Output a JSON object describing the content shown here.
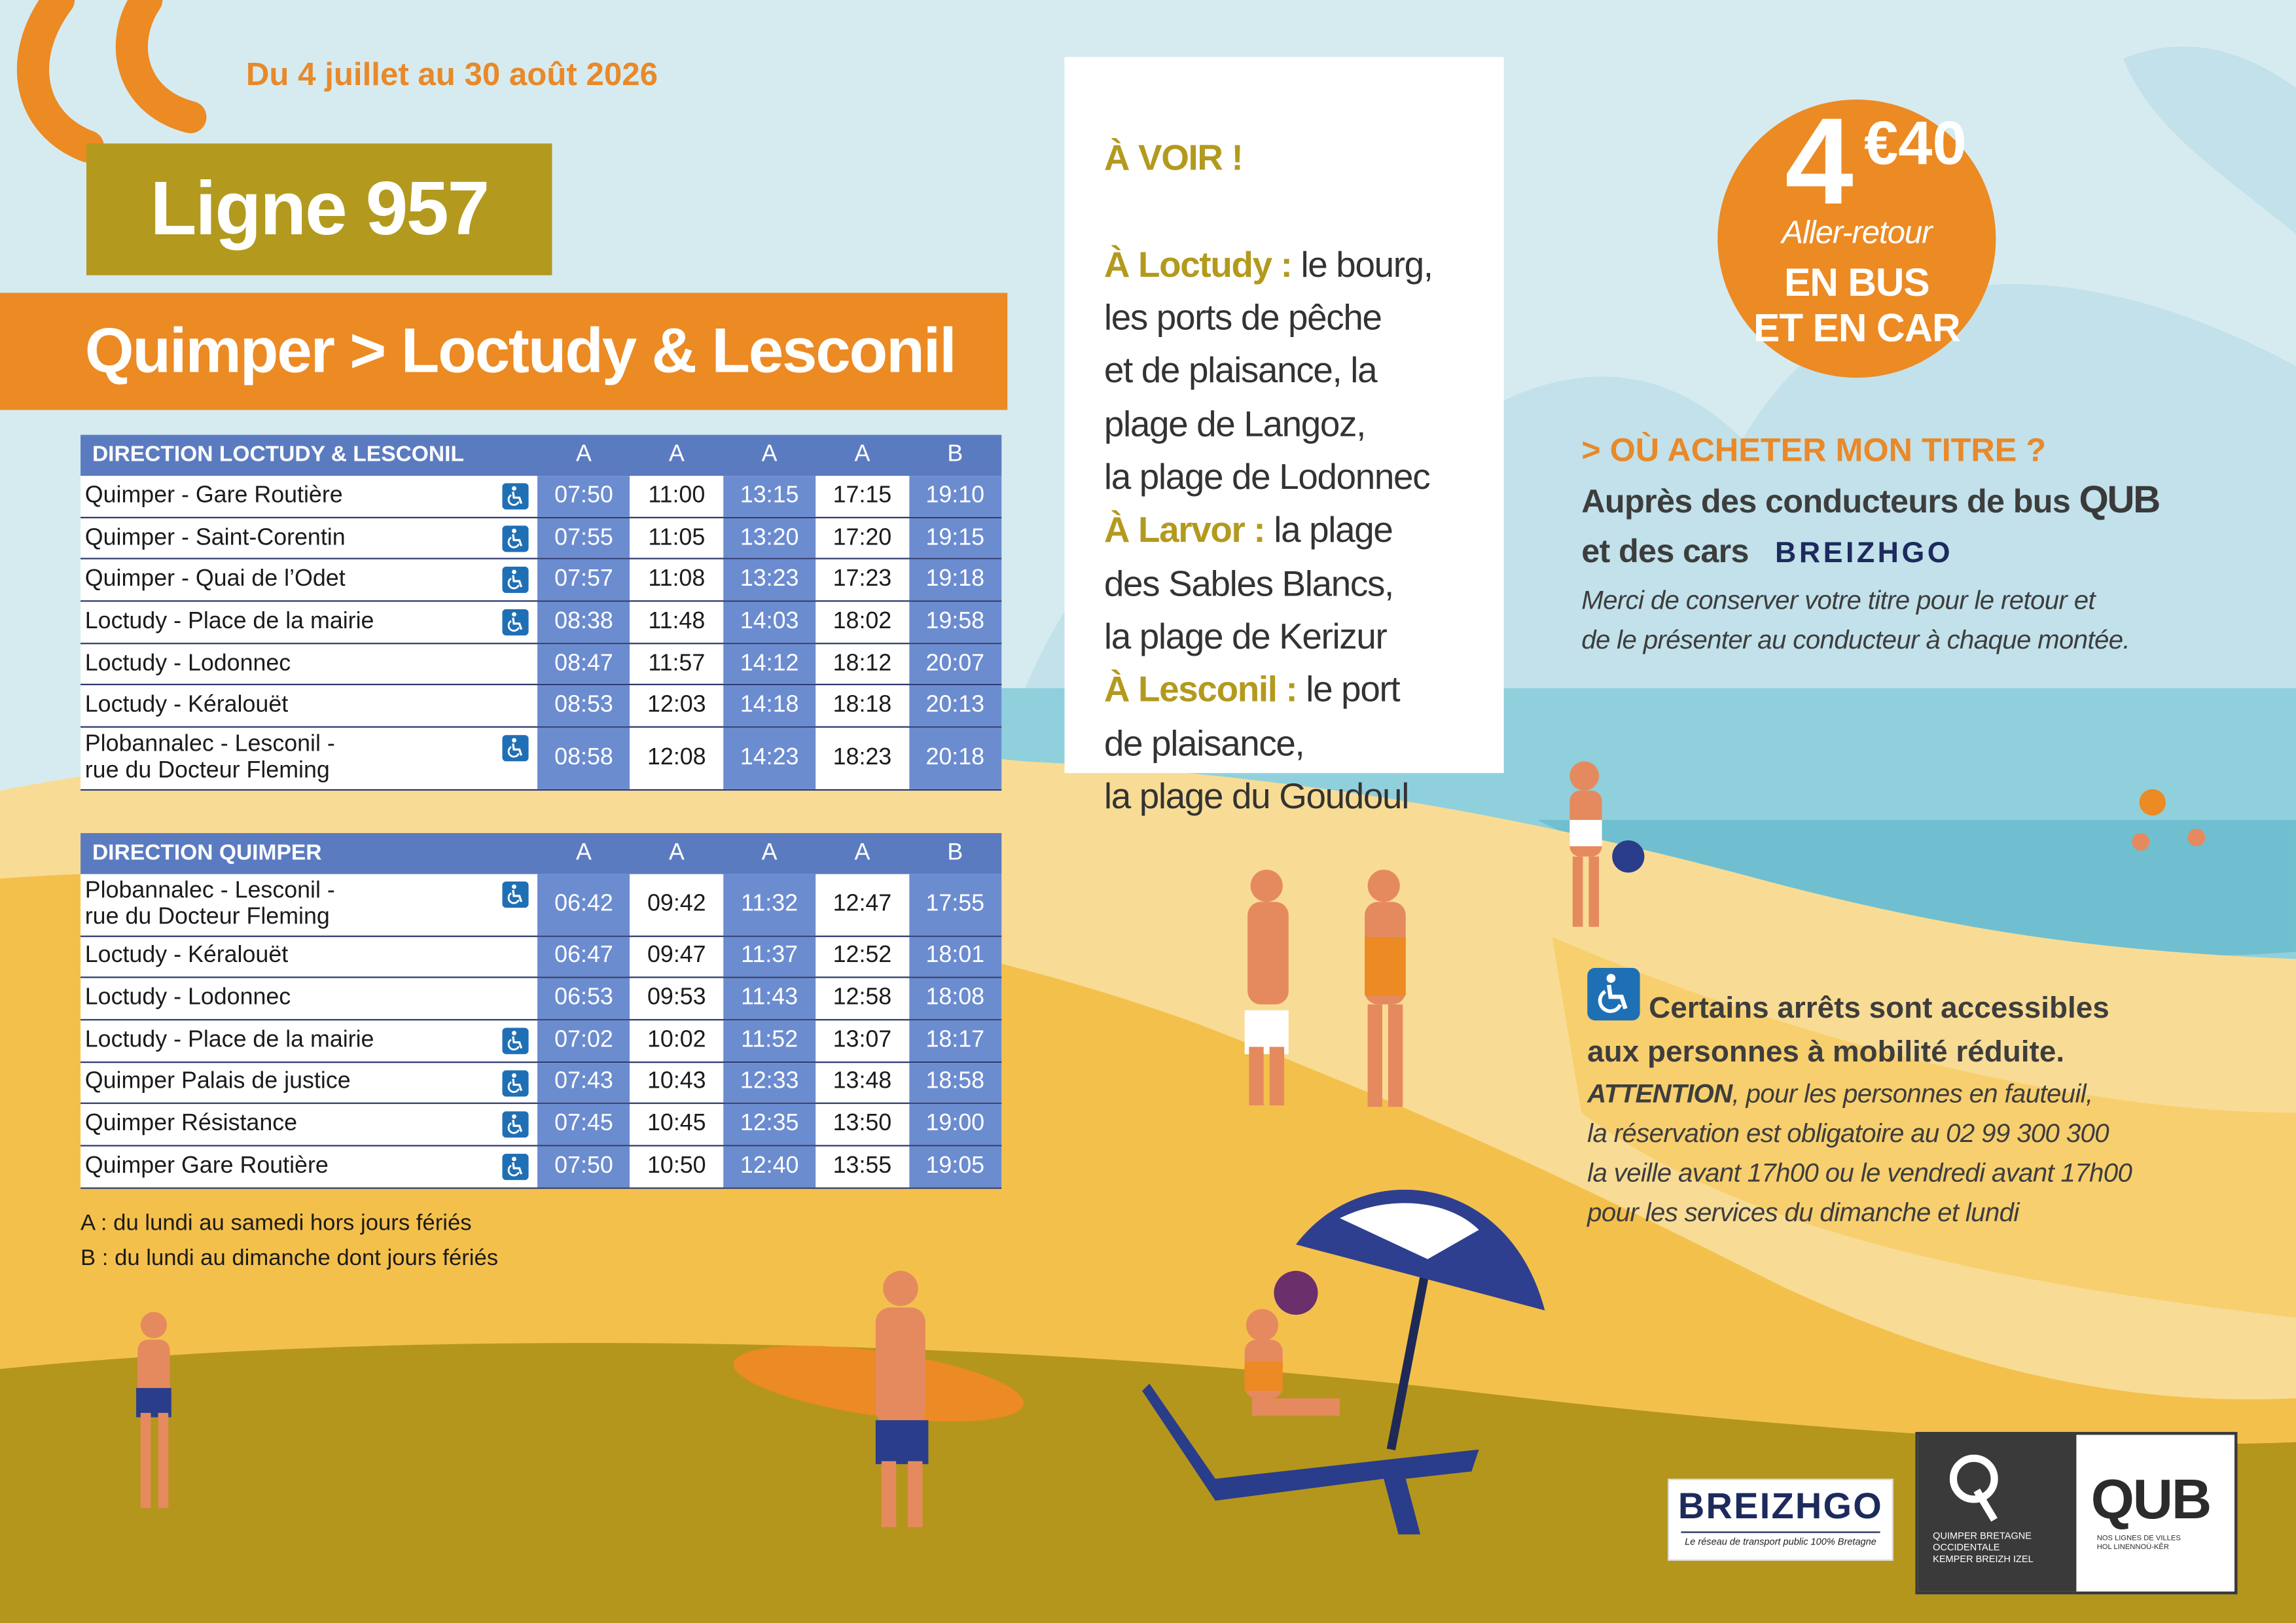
{
  "header": {
    "dates": "Du 4 juillet au 30 août 2026",
    "line": "Ligne 957",
    "route": "Quimper > Loctudy & Lesconil"
  },
  "tables": [
    {
      "header": [
        "DIRECTION LOCTUDY & LESCONIL",
        "A",
        "A",
        "A",
        "A",
        "B"
      ],
      "rows": [
        {
          "stop": "Quimper - Gare Routière",
          "accessible": true,
          "times": [
            "07:50",
            "11:00",
            "13:15",
            "17:15",
            "19:10"
          ]
        },
        {
          "stop": "Quimper - Saint-Corentin",
          "accessible": true,
          "times": [
            "07:55",
            "11:05",
            "13:20",
            "17:20",
            "19:15"
          ]
        },
        {
          "stop": "Quimper - Quai de l’Odet",
          "accessible": true,
          "times": [
            "07:57",
            "11:08",
            "13:23",
            "17:23",
            "19:18"
          ]
        },
        {
          "stop": "Loctudy - Place de la mairie",
          "accessible": true,
          "times": [
            "08:38",
            "11:48",
            "14:03",
            "18:02",
            "19:58"
          ]
        },
        {
          "stop": "Loctudy - Lodonnec",
          "accessible": false,
          "times": [
            "08:47",
            "11:57",
            "14:12",
            "18:12",
            "20:07"
          ]
        },
        {
          "stop": "Loctudy - Kéralouët",
          "accessible": false,
          "times": [
            "08:53",
            "12:03",
            "14:18",
            "18:18",
            "20:13"
          ]
        },
        {
          "stop": "Plobannalec - Lesconil -\nrue du Docteur Fleming",
          "accessible": true,
          "times": [
            "08:58",
            "12:08",
            "14:23",
            "18:23",
            "20:18"
          ]
        }
      ]
    },
    {
      "header": [
        "DIRECTION QUIMPER",
        "A",
        "A",
        "A",
        "A",
        "B"
      ],
      "rows": [
        {
          "stop": "Plobannalec - Lesconil -\nrue du Docteur Fleming",
          "accessible": true,
          "times": [
            "06:42",
            "09:42",
            "11:32",
            "12:47",
            "17:55"
          ]
        },
        {
          "stop": "Loctudy - Kéralouët",
          "accessible": false,
          "times": [
            "06:47",
            "09:47",
            "11:37",
            "12:52",
            "18:01"
          ]
        },
        {
          "stop": "Loctudy - Lodonnec",
          "accessible": false,
          "times": [
            "06:53",
            "09:53",
            "11:43",
            "12:58",
            "18:08"
          ]
        },
        {
          "stop": "Loctudy - Place de la mairie",
          "accessible": true,
          "times": [
            "07:02",
            "10:02",
            "11:52",
            "13:07",
            "18:17"
          ]
        },
        {
          "stop": "Quimper Palais de justice",
          "accessible": true,
          "times": [
            "07:43",
            "10:43",
            "12:33",
            "13:48",
            "18:58"
          ]
        },
        {
          "stop": "Quimper Résistance",
          "accessible": true,
          "times": [
            "07:45",
            "10:45",
            "12:35",
            "13:50",
            "19:00"
          ]
        },
        {
          "stop": "Quimper Gare Routière",
          "accessible": true,
          "times": [
            "07:50",
            "10:50",
            "12:40",
            "13:55",
            "19:05"
          ]
        }
      ]
    }
  ],
  "legend": [
    "A : du lundi au samedi hors jours fériés",
    "B : du lundi au dimanche dont jours fériés"
  ],
  "to_see": {
    "title": "À VOIR !",
    "items": [
      {
        "place": "À Loctudy :",
        "text": " le bourg,\nles ports de pêche\net de plaisance, la\nplage de Langoz,\nla plage de Lodonnec"
      },
      {
        "place": "À Larvor :",
        "text": " la plage\ndes Sables Blancs,\nla plage de Kerizur"
      },
      {
        "place": "À Lesconil :",
        "text": " le port\nde plaisance,\nla plage du Goudoul"
      }
    ]
  },
  "price": {
    "units": "4",
    "cents": "€40",
    "note": "Aller-retour",
    "modes": "EN BUS\nET EN CAR"
  },
  "purchase": {
    "title": "> OÙ ACHETER MON TITRE ?",
    "line1": "Auprès des conducteurs de bus",
    "brand1": "QUB",
    "line2": "et des cars",
    "brand2": "BREIZHGO",
    "note": "Merci de conserver votre titre pour le retour et\nde le présenter au conducteur à chaque montée."
  },
  "accessibility": {
    "title": "Certains arrêts sont accessibles\naux personnes à mobilité réduite.",
    "warning": "ATTENTION",
    "text": ", pour les personnes en fauteuil,\nla réservation est obligatoire au 02 99 300 300\nla veille avant 17h00 ou le vendredi avant 17h00\npour les services du dimanche et lundi"
  },
  "logos": {
    "breizhgo": "BREIZHGO",
    "breizhgo_tagline": "Le réseau de transport public 100% Bretagne",
    "qbo": "QUIMPER BRETAGNE\nOCCIDENTALE\nKEMPER BREIZH IZEL",
    "qub": "QUB",
    "qub_tagline": "NOS LIGNES DE VILLES\nHOL LINENNOÙ-KÊR"
  }
}
